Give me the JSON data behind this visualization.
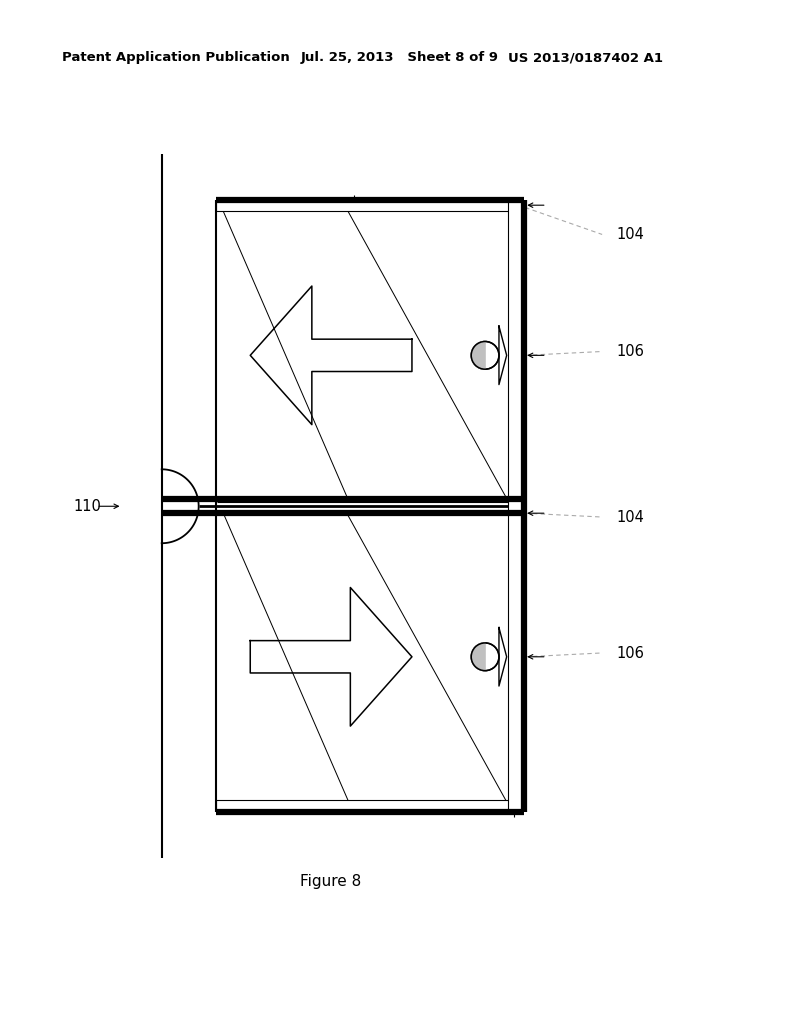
{
  "bg_color": "#ffffff",
  "header_left": "Patent Application Publication",
  "header_mid": "Jul. 25, 2013   Sheet 8 of 9",
  "header_right": "US 2013/0187402 A1",
  "footer_label": "Figure 8",
  "label_104_top": "104",
  "label_106_top": "106",
  "label_104_bot": "104",
  "label_106_bot": "106",
  "label_110": "110",
  "line_color": "#000000",
  "dot_line_color": "#aaaaaa",
  "lw_thin": 0.8,
  "lw_medium": 1.5,
  "lw_thick": 2.5,
  "lw_verythick": 4.5
}
